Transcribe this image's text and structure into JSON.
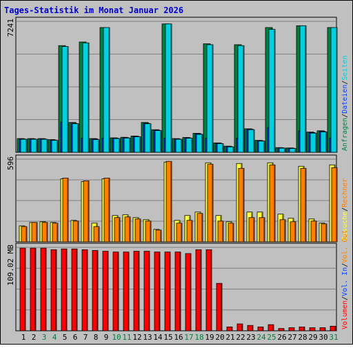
{
  "chart_data": {
    "type": "bar",
    "title": "Tages-Statistik im Monat Januar 2026",
    "categories": [
      "1",
      "2",
      "3",
      "4",
      "5",
      "6",
      "7",
      "8",
      "9",
      "10",
      "11",
      "12",
      "13",
      "14",
      "15",
      "16",
      "17",
      "18",
      "19",
      "20",
      "21",
      "22",
      "23",
      "24",
      "25",
      "26",
      "27",
      "28",
      "29",
      "30",
      "31"
    ],
    "weekend_days": [
      "3",
      "4",
      "10",
      "11",
      "17",
      "18",
      "24",
      "25",
      "31"
    ],
    "colors": {
      "background": "#c0c0c0",
      "plot_background": "#c0c0c0",
      "title": "#0000cc",
      "day_label": "#000000",
      "weekend_label": "#007f3f",
      "hits": "#008040",
      "files": "#0040ff",
      "pages": "#00d0e0",
      "visits": "#ffff40",
      "sites": "#ff8000",
      "kbytes": "#ff0000"
    },
    "panels": [
      {
        "max_label": "7241",
        "ylim": [
          0,
          7241
        ],
        "grid": true,
        "legend": [
          {
            "key": "hits",
            "label": "Anfragen"
          },
          {
            "key": "files",
            "label": "Dateien"
          },
          {
            "key": "pages",
            "label": "Seiten"
          }
        ],
        "series": [
          {
            "key": "hits",
            "name": "Anfragen",
            "values": [
              760,
              760,
              760,
              700,
              5900,
              1650,
              6100,
              760,
              6900,
              800,
              830,
              900,
              1650,
              1250,
              7100,
              760,
              820,
              1050,
              6000,
              520,
              340,
              5950,
              1300,
              660,
              6900,
              260,
              240,
              7000,
              1120,
              1190,
              6900
            ]
          },
          {
            "key": "files",
            "name": "Dateien",
            "values": [
              740,
              740,
              740,
              680,
              1650,
              1600,
              780,
              740,
              770,
              780,
              810,
              880,
              1600,
              1230,
              780,
              740,
              800,
              1030,
              780,
              500,
              320,
              780,
              1280,
              640,
              1350,
              250,
              230,
              1180,
              1090,
              1160,
              780
            ]
          },
          {
            "key": "pages",
            "name": "Seiten",
            "values": [
              720,
              720,
              720,
              660,
              5850,
              1580,
              6050,
              700,
              6900,
              760,
              790,
              860,
              1580,
              1200,
              7100,
              720,
              780,
              990,
              5950,
              480,
              300,
              5900,
              1250,
              620,
              6800,
              230,
              210,
              7000,
              1060,
              1130,
              6900
            ]
          }
        ]
      },
      {
        "max_label": "596",
        "ylim": [
          0,
          596
        ],
        "grid": true,
        "legend": [
          {
            "key": "visits",
            "label": "Besuche"
          },
          {
            "key": "sites",
            "label": "Rechner"
          }
        ],
        "series": [
          {
            "key": "visits",
            "name": "Besuche",
            "values": [
              115,
              140,
              145,
              140,
              455,
              155,
              435,
              135,
              455,
              190,
              195,
              175,
              160,
              90,
              575,
              155,
              190,
              215,
              570,
              190,
              145,
              565,
              215,
              215,
              570,
              200,
              170,
              545,
              165,
              135,
              555
            ]
          },
          {
            "key": "sites",
            "name": "Rechner",
            "values": [
              110,
              140,
              140,
              135,
              460,
              150,
              440,
              110,
              460,
              175,
              180,
              165,
              150,
              85,
              580,
              135,
              155,
              205,
              560,
              150,
              135,
              530,
              175,
              175,
              555,
              160,
              145,
              530,
              150,
              130,
              535
            ]
          }
        ]
      },
      {
        "max_label": "109.02 MB",
        "ylim": [
          0,
          109.02
        ],
        "grid": true,
        "legend": [
          {
            "key": "kbytes",
            "label": "Volumen"
          },
          {
            "key": "files",
            "label": "Vol. In"
          },
          {
            "key": "sites",
            "label": "Vol. Out"
          }
        ],
        "series": [
          {
            "key": "kbytes",
            "name": "Volumen",
            "values": [
              108,
              108,
              108,
              106,
              107,
              107,
              106,
              105,
              104,
              103,
              103,
              104,
              104,
              103,
              103,
              103,
              101,
              106,
              106,
              62,
              5,
              9,
              7,
              5,
              8,
              3,
              4,
              5,
              4,
              4,
              6
            ]
          }
        ]
      }
    ]
  }
}
